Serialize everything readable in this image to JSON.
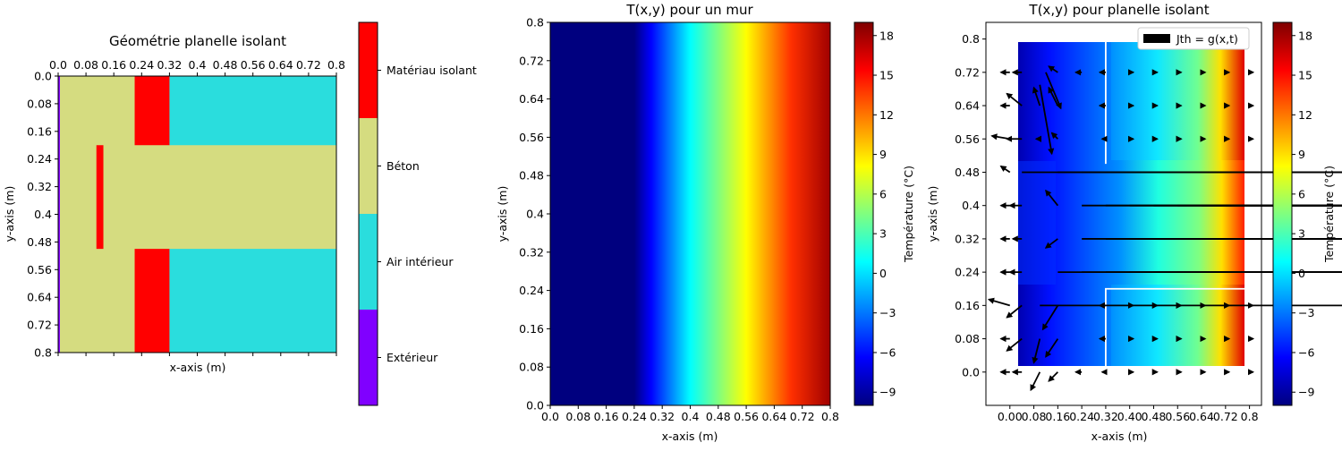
{
  "chart_data": [
    {
      "type": "heatmap",
      "title": "Géométrie planelle isolant",
      "xlabel": "x-axis (m)",
      "ylabel": "y-axis (m)",
      "xlim": [
        0,
        0.8
      ],
      "ylim": [
        0.8,
        0
      ],
      "x_ticks": [
        "0.0",
        "0.08",
        "0.16",
        "0.24",
        "0.32",
        "0.4",
        "0.48",
        "0.56",
        "0.64",
        "0.72",
        "0.8"
      ],
      "y_ticks": [
        "0.0",
        "0.08",
        "0.16",
        "0.24",
        "0.32",
        "0.4",
        "0.48",
        "0.56",
        "0.64",
        "0.72",
        "0.8"
      ],
      "categories": [
        {
          "name": "Extérieur",
          "color": "#8000ff"
        },
        {
          "name": "Air intérieur",
          "color": "#2adddd"
        },
        {
          "name": "Béton",
          "color": "#d5dc80"
        },
        {
          "name": "Matériau isolant",
          "color": "#ff0000"
        }
      ],
      "regions": [
        {
          "material": "Béton",
          "x": [
            0.0,
            0.8
          ],
          "y": [
            0.0,
            0.8
          ]
        },
        {
          "material": "Air intérieur",
          "x": [
            0.32,
            0.8
          ],
          "y": [
            0.0,
            0.2
          ]
        },
        {
          "material": "Air intérieur",
          "x": [
            0.32,
            0.8
          ],
          "y": [
            0.5,
            0.8
          ]
        },
        {
          "material": "Matériau isolant",
          "x": [
            0.22,
            0.32
          ],
          "y": [
            0.0,
            0.2
          ]
        },
        {
          "material": "Matériau isolant",
          "x": [
            0.22,
            0.32
          ],
          "y": [
            0.5,
            0.8
          ]
        },
        {
          "material": "Matériau isolant",
          "x": [
            0.11,
            0.13
          ],
          "y": [
            0.2,
            0.5
          ]
        },
        {
          "material": "Extérieur",
          "x": [
            0.0,
            0.004
          ],
          "y": [
            0.0,
            0.8
          ]
        }
      ]
    },
    {
      "type": "heatmap",
      "title": "T(x,y) pour un mur",
      "xlabel": "x-axis (m)",
      "ylabel": "y-axis (m)",
      "colorbar_label": "Température (°C)",
      "xlim": [
        0,
        0.8
      ],
      "ylim": [
        0,
        0.8
      ],
      "x_ticks": [
        "0.0",
        "0.08",
        "0.16",
        "0.24",
        "0.32",
        "0.4",
        "0.48",
        "0.56",
        "0.64",
        "0.72",
        "0.8"
      ],
      "y_ticks": [
        "0.0",
        "0.08",
        "0.16",
        "0.24",
        "0.32",
        "0.4",
        "0.48",
        "0.56",
        "0.64",
        "0.72",
        "0.8"
      ],
      "colorbar_ticks": [
        "−9",
        "−6",
        "−3",
        "0",
        "3",
        "6",
        "9",
        "12",
        "15",
        "18"
      ],
      "clim": [
        -10,
        19
      ],
      "colormap": "jet",
      "field": {
        "x": [
          0,
          0.24,
          0.8
        ],
        "T": [
          -10,
          -10,
          19
        ]
      }
    },
    {
      "type": "heatmap",
      "title": "T(x,y) pour planelle isolant",
      "xlabel": "x-axis (m)",
      "ylabel": "y-axis (m)",
      "colorbar_label": "Température (°C)",
      "legend": "Jth = g(x,t)",
      "legend_position": "top-right",
      "xlim": [
        -0.08,
        0.84
      ],
      "ylim": [
        -0.08,
        0.84
      ],
      "x_ticks": [
        "0.00",
        "0.08",
        "0.16",
        "0.24",
        "0.32",
        "0.40",
        "0.48",
        "0.56",
        "0.64",
        "0.72",
        "0.8"
      ],
      "y_ticks": [
        "0.0",
        "0.08",
        "0.16",
        "0.24",
        "0.32",
        "0.4",
        "0.48",
        "0.56",
        "0.64",
        "0.72",
        "0.8"
      ],
      "colorbar_ticks": [
        "−9",
        "−6",
        "−3",
        "0",
        "3",
        "6",
        "9",
        "12",
        "15",
        "18"
      ],
      "clim": [
        -10,
        19
      ],
      "colormap": "jet",
      "domain": {
        "x": [
          0,
          0.8
        ],
        "y": [
          0,
          0.8
        ]
      },
      "air_outlines": [
        {
          "x": [
            0.32,
            0.8
          ],
          "y": [
            0.0,
            0.2
          ]
        },
        {
          "x": [
            0.32,
            0.8
          ],
          "y": [
            0.5,
            0.8
          ]
        }
      ],
      "vectors": [
        {
          "x": 0.0,
          "y": 0.72,
          "u": -0.03,
          "v": 0.0
        },
        {
          "x": 0.04,
          "y": 0.72,
          "u": -0.03,
          "v": 0.0
        },
        {
          "x": 0.1,
          "y": 0.69,
          "u": 0.04,
          "v": -0.23
        },
        {
          "x": 0.12,
          "y": 0.72,
          "u": 0.05,
          "v": -0.12
        },
        {
          "x": 0.16,
          "y": 0.72,
          "u": -0.03,
          "v": 0.02
        },
        {
          "x": 0.24,
          "y": 0.72,
          "u": -0.02,
          "v": 0.0
        },
        {
          "x": 0.32,
          "y": 0.72,
          "u": -0.02,
          "v": 0.0
        },
        {
          "x": 0.4,
          "y": 0.72,
          "u": 0.01,
          "v": 0.0
        },
        {
          "x": 0.48,
          "y": 0.72,
          "u": 0.01,
          "v": 0.0
        },
        {
          "x": 0.56,
          "y": 0.72,
          "u": 0.01,
          "v": 0.0
        },
        {
          "x": 0.64,
          "y": 0.72,
          "u": 0.01,
          "v": 0.0
        },
        {
          "x": 0.72,
          "y": 0.72,
          "u": 0.01,
          "v": 0.0
        },
        {
          "x": 0.8,
          "y": 0.72,
          "u": 0.01,
          "v": 0.0
        },
        {
          "x": 0.0,
          "y": 0.64,
          "u": -0.03,
          "v": 0.0
        },
        {
          "x": 0.04,
          "y": 0.64,
          "u": -0.05,
          "v": 0.04
        },
        {
          "x": 0.1,
          "y": 0.64,
          "u": -0.02,
          "v": 0.06
        },
        {
          "x": 0.16,
          "y": 0.64,
          "u": -0.03,
          "v": 0.06
        },
        {
          "x": 0.32,
          "y": 0.64,
          "u": -0.02,
          "v": 0.0
        },
        {
          "x": 0.4,
          "y": 0.64,
          "u": 0.01,
          "v": 0.0
        },
        {
          "x": 0.48,
          "y": 0.64,
          "u": 0.01,
          "v": 0.0
        },
        {
          "x": 0.56,
          "y": 0.64,
          "u": 0.01,
          "v": 0.0
        },
        {
          "x": 0.64,
          "y": 0.64,
          "u": 0.01,
          "v": 0.0
        },
        {
          "x": 0.72,
          "y": 0.64,
          "u": 0.01,
          "v": 0.0
        },
        {
          "x": 0.8,
          "y": 0.64,
          "u": 0.01,
          "v": 0.0
        },
        {
          "x": 0.0,
          "y": 0.56,
          "u": -0.06,
          "v": 0.01
        },
        {
          "x": 0.04,
          "y": 0.56,
          "u": -0.05,
          "v": 0.0
        },
        {
          "x": 0.1,
          "y": 0.56,
          "u": -0.01,
          "v": 0.0
        },
        {
          "x": 0.16,
          "y": 0.56,
          "u": -0.02,
          "v": 0.02
        },
        {
          "x": 0.32,
          "y": 0.56,
          "u": -0.01,
          "v": 0.0
        },
        {
          "x": 0.4,
          "y": 0.56,
          "u": 0.01,
          "v": 0.0
        },
        {
          "x": 0.48,
          "y": 0.56,
          "u": 0.01,
          "v": 0.0
        },
        {
          "x": 0.56,
          "y": 0.56,
          "u": 0.01,
          "v": 0.0
        },
        {
          "x": 0.64,
          "y": 0.56,
          "u": 0.01,
          "v": 0.0
        },
        {
          "x": 0.72,
          "y": 0.56,
          "u": 0.01,
          "v": 0.0
        },
        {
          "x": 0.8,
          "y": 0.56,
          "u": 0.01,
          "v": 0.0
        },
        {
          "x": 0.0,
          "y": 0.48,
          "u": -0.03,
          "v": 0.02
        },
        {
          "x": 0.04,
          "y": 0.48,
          "u": 0.0,
          "v": 0.0
        },
        {
          "x": 0.16,
          "y": 0.48,
          "u": 0.0,
          "v": 0.0
        },
        {
          "x": 0.24,
          "y": 0.48,
          "u": 0.0,
          "v": 0.0
        },
        {
          "x": 0.32,
          "y": 0.48,
          "u": 0.0,
          "v": 0.0
        },
        {
          "x": 0.4,
          "y": 0.48,
          "u": 0.0,
          "v": 0.0
        },
        {
          "x": 0.48,
          "y": 0.48,
          "u": 0.0,
          "v": 0.0
        },
        {
          "x": 0.56,
          "y": 0.48,
          "u": 0.0,
          "v": 0.0
        },
        {
          "x": 0.64,
          "y": 0.48,
          "u": 0.0,
          "v": 0.0
        },
        {
          "x": 0.72,
          "y": 0.48,
          "u": 0.0,
          "v": 0.0
        },
        {
          "x": 0.8,
          "y": 0.48,
          "u": 0.0,
          "v": 0.0
        },
        {
          "x": 0.0,
          "y": 0.4,
          "u": -0.03,
          "v": 0.0
        },
        {
          "x": 0.04,
          "y": 0.4,
          "u": -0.04,
          "v": 0.0
        },
        {
          "x": 0.16,
          "y": 0.4,
          "u": -0.04,
          "v": 0.05
        },
        {
          "x": 0.24,
          "y": 0.4,
          "u": 0.0,
          "v": 0.0
        },
        {
          "x": 0.32,
          "y": 0.4,
          "u": 0.0,
          "v": 0.0
        },
        {
          "x": 0.4,
          "y": 0.4,
          "u": 0.0,
          "v": 0.0
        },
        {
          "x": 0.48,
          "y": 0.4,
          "u": 0.0,
          "v": 0.0
        },
        {
          "x": 0.56,
          "y": 0.4,
          "u": 0.0,
          "v": 0.0
        },
        {
          "x": 0.64,
          "y": 0.4,
          "u": 0.0,
          "v": 0.0
        },
        {
          "x": 0.72,
          "y": 0.4,
          "u": 0.0,
          "v": 0.0
        },
        {
          "x": 0.8,
          "y": 0.4,
          "u": 0.0,
          "v": 0.0
        },
        {
          "x": 0.0,
          "y": 0.32,
          "u": -0.03,
          "v": 0.0
        },
        {
          "x": 0.04,
          "y": 0.32,
          "u": -0.03,
          "v": 0.0
        },
        {
          "x": 0.16,
          "y": 0.32,
          "u": -0.04,
          "v": -0.03
        },
        {
          "x": 0.24,
          "y": 0.32,
          "u": 0.0,
          "v": 0.0
        },
        {
          "x": 0.32,
          "y": 0.32,
          "u": 0.0,
          "v": 0.0
        },
        {
          "x": 0.4,
          "y": 0.32,
          "u": 0.0,
          "v": 0.0
        },
        {
          "x": 0.48,
          "y": 0.32,
          "u": 0.0,
          "v": 0.0
        },
        {
          "x": 0.56,
          "y": 0.32,
          "u": 0.0,
          "v": 0.0
        },
        {
          "x": 0.64,
          "y": 0.32,
          "u": 0.0,
          "v": 0.0
        },
        {
          "x": 0.72,
          "y": 0.32,
          "u": 0.0,
          "v": 0.0
        },
        {
          "x": 0.8,
          "y": 0.32,
          "u": 0.0,
          "v": 0.0
        },
        {
          "x": 0.0,
          "y": 0.24,
          "u": -0.03,
          "v": 0.0
        },
        {
          "x": 0.04,
          "y": 0.24,
          "u": -0.04,
          "v": 0.0
        },
        {
          "x": 0.16,
          "y": 0.24,
          "u": 0.0,
          "v": 0.0
        },
        {
          "x": 0.24,
          "y": 0.24,
          "u": 0.0,
          "v": 0.0
        },
        {
          "x": 0.32,
          "y": 0.24,
          "u": 0.0,
          "v": 0.0
        },
        {
          "x": 0.4,
          "y": 0.24,
          "u": 0.0,
          "v": 0.0
        },
        {
          "x": 0.48,
          "y": 0.24,
          "u": 0.0,
          "v": 0.0
        },
        {
          "x": 0.56,
          "y": 0.24,
          "u": 0.0,
          "v": 0.0
        },
        {
          "x": 0.64,
          "y": 0.24,
          "u": 0.0,
          "v": 0.0
        },
        {
          "x": 0.72,
          "y": 0.24,
          "u": 0.0,
          "v": 0.0
        },
        {
          "x": 0.8,
          "y": 0.24,
          "u": 0.0,
          "v": 0.0
        },
        {
          "x": 0.0,
          "y": 0.16,
          "u": -0.07,
          "v": 0.02
        },
        {
          "x": 0.04,
          "y": 0.16,
          "u": -0.05,
          "v": -0.04
        },
        {
          "x": 0.1,
          "y": 0.16,
          "u": 0.0,
          "v": 0.0
        },
        {
          "x": 0.16,
          "y": 0.16,
          "u": -0.05,
          "v": -0.08
        },
        {
          "x": 0.32,
          "y": 0.16,
          "u": -0.02,
          "v": 0.0
        },
        {
          "x": 0.4,
          "y": 0.16,
          "u": 0.01,
          "v": 0.0
        },
        {
          "x": 0.48,
          "y": 0.16,
          "u": 0.01,
          "v": 0.0
        },
        {
          "x": 0.56,
          "y": 0.16,
          "u": 0.01,
          "v": 0.0
        },
        {
          "x": 0.64,
          "y": 0.16,
          "u": 0.01,
          "v": 0.0
        },
        {
          "x": 0.72,
          "y": 0.16,
          "u": 0.01,
          "v": 0.0
        },
        {
          "x": 0.8,
          "y": 0.16,
          "u": 0.01,
          "v": 0.0
        },
        {
          "x": 0.0,
          "y": 0.08,
          "u": -0.03,
          "v": 0.0
        },
        {
          "x": 0.04,
          "y": 0.08,
          "u": -0.05,
          "v": -0.04
        },
        {
          "x": 0.1,
          "y": 0.08,
          "u": -0.02,
          "v": -0.08
        },
        {
          "x": 0.16,
          "y": 0.08,
          "u": -0.04,
          "v": -0.06
        },
        {
          "x": 0.32,
          "y": 0.08,
          "u": -0.02,
          "v": 0.0
        },
        {
          "x": 0.4,
          "y": 0.08,
          "u": 0.01,
          "v": 0.0
        },
        {
          "x": 0.48,
          "y": 0.08,
          "u": 0.01,
          "v": 0.0
        },
        {
          "x": 0.56,
          "y": 0.08,
          "u": 0.01,
          "v": 0.0
        },
        {
          "x": 0.64,
          "y": 0.08,
          "u": 0.01,
          "v": 0.0
        },
        {
          "x": 0.72,
          "y": 0.08,
          "u": 0.01,
          "v": 0.0
        },
        {
          "x": 0.8,
          "y": 0.08,
          "u": 0.01,
          "v": 0.0
        },
        {
          "x": 0.0,
          "y": 0.0,
          "u": -0.03,
          "v": 0.0
        },
        {
          "x": 0.04,
          "y": 0.0,
          "u": -0.03,
          "v": 0.0
        },
        {
          "x": 0.1,
          "y": 0.0,
          "u": -0.03,
          "v": -0.06
        },
        {
          "x": 0.16,
          "y": 0.0,
          "u": -0.03,
          "v": -0.03
        },
        {
          "x": 0.24,
          "y": 0.0,
          "u": -0.02,
          "v": 0.0
        },
        {
          "x": 0.32,
          "y": 0.0,
          "u": -0.01,
          "v": 0.0
        },
        {
          "x": 0.4,
          "y": 0.0,
          "u": 0.01,
          "v": 0.0
        },
        {
          "x": 0.48,
          "y": 0.0,
          "u": 0.01,
          "v": 0.0
        },
        {
          "x": 0.56,
          "y": 0.0,
          "u": 0.01,
          "v": 0.0
        },
        {
          "x": 0.64,
          "y": 0.0,
          "u": 0.01,
          "v": 0.0
        },
        {
          "x": 0.72,
          "y": 0.0,
          "u": 0.01,
          "v": 0.0
        },
        {
          "x": 0.8,
          "y": 0.0,
          "u": 0.01,
          "v": 0.0
        }
      ]
    }
  ]
}
